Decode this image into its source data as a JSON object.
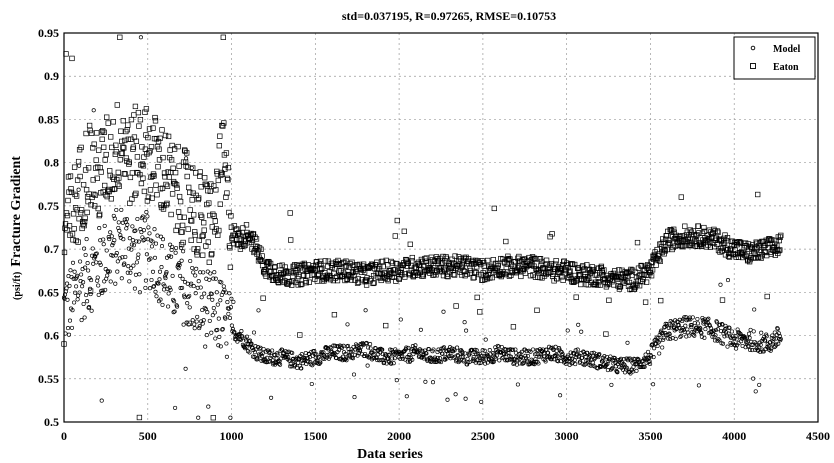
{
  "chart_data": {
    "type": "scatter",
    "title": "std=0.037195, R=0.97265, RMSE=0.10753",
    "xlabel": "Data series",
    "ylabel_unit": "(psi/ft)",
    "ylabel": "Fracture Gradient",
    "xlim": [
      0,
      4500
    ],
    "ylim": [
      0.5,
      0.95
    ],
    "x_ticks": [
      "0",
      "500",
      "1000",
      "1500",
      "2000",
      "2500",
      "3000",
      "3500",
      "4000",
      "4500"
    ],
    "y_ticks": [
      "0.5",
      "0.55",
      "0.6",
      "0.65",
      "0.7",
      "0.75",
      "0.8",
      "0.85",
      "0.9",
      "0.95"
    ],
    "grid": true,
    "legend_position": "top-right",
    "series": [
      {
        "name": "Model",
        "marker": "circle",
        "color": "#000000",
        "x": [
          0,
          50,
          100,
          150,
          200,
          250,
          300,
          350,
          400,
          450,
          500,
          550,
          600,
          650,
          700,
          750,
          800,
          850,
          900,
          950,
          1000,
          1050,
          1100,
          1150,
          1200,
          1300,
          1400,
          1500,
          1600,
          1700,
          1800,
          1900,
          2000,
          2100,
          2200,
          2300,
          2400,
          2500,
          2600,
          2700,
          2800,
          2900,
          3000,
          3100,
          3200,
          3300,
          3400,
          3500,
          3600,
          3700,
          3800,
          3900,
          4000,
          4100,
          4200,
          4280
        ],
        "y": [
          0.63,
          0.64,
          0.66,
          0.67,
          0.68,
          0.69,
          0.7,
          0.71,
          0.7,
          0.69,
          0.7,
          0.69,
          0.67,
          0.66,
          0.66,
          0.65,
          0.64,
          0.63,
          0.63,
          0.62,
          0.605,
          0.6,
          0.59,
          0.58,
          0.575,
          0.575,
          0.57,
          0.575,
          0.58,
          0.58,
          0.585,
          0.575,
          0.575,
          0.58,
          0.575,
          0.58,
          0.575,
          0.575,
          0.58,
          0.575,
          0.575,
          0.58,
          0.575,
          0.575,
          0.57,
          0.565,
          0.565,
          0.575,
          0.605,
          0.61,
          0.61,
          0.605,
          0.595,
          0.595,
          0.59,
          0.6
        ]
      },
      {
        "name": "Eaton",
        "marker": "square",
        "color": "#000000",
        "x": [
          0,
          50,
          100,
          150,
          200,
          250,
          300,
          350,
          400,
          450,
          500,
          550,
          600,
          650,
          700,
          750,
          800,
          850,
          900,
          950,
          1000,
          1050,
          1100,
          1150,
          1200,
          1300,
          1400,
          1500,
          1600,
          1700,
          1800,
          1900,
          2000,
          2100,
          2200,
          2300,
          2400,
          2500,
          2600,
          2700,
          2800,
          2900,
          3000,
          3100,
          3200,
          3300,
          3400,
          3500,
          3600,
          3700,
          3800,
          3900,
          4000,
          4100,
          4200,
          4280
        ],
        "y": [
          0.72,
          0.74,
          0.77,
          0.8,
          0.78,
          0.8,
          0.81,
          0.83,
          0.8,
          0.82,
          0.81,
          0.8,
          0.79,
          0.77,
          0.76,
          0.76,
          0.74,
          0.73,
          0.74,
          0.8,
          0.72,
          0.71,
          0.72,
          0.7,
          0.68,
          0.67,
          0.67,
          0.675,
          0.675,
          0.675,
          0.67,
          0.675,
          0.675,
          0.68,
          0.68,
          0.68,
          0.68,
          0.675,
          0.68,
          0.68,
          0.68,
          0.675,
          0.675,
          0.67,
          0.67,
          0.665,
          0.665,
          0.675,
          0.71,
          0.715,
          0.715,
          0.71,
          0.7,
          0.695,
          0.7,
          0.705
        ]
      }
    ]
  }
}
